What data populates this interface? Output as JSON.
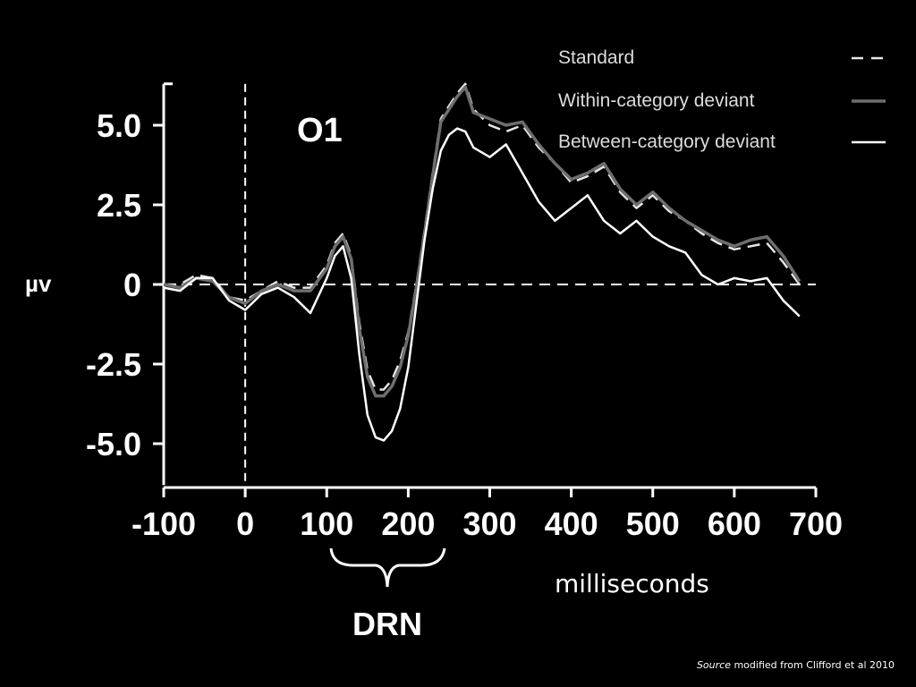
{
  "chart_data": {
    "type": "line",
    "title": "O1",
    "xlabel": "milliseconds",
    "ylabel": "µv",
    "xlim": [
      -100,
      700
    ],
    "ylim": [
      -6.3,
      6.3
    ],
    "x_ticks": [
      -100,
      0,
      100,
      200,
      300,
      400,
      500,
      600,
      700
    ],
    "x_tick_labels": [
      "-100",
      "0",
      "100",
      "200",
      "300",
      "400",
      "500",
      "600",
      "700"
    ],
    "y_ticks": [
      5.0,
      2.5,
      0,
      -2.5,
      -5.0
    ],
    "y_tick_labels": [
      "5.0",
      "2.5",
      "0",
      "-2.5",
      "-5.0"
    ],
    "legend_position": "top-right",
    "annotation": {
      "label": "DRN",
      "x_range": [
        110,
        250
      ]
    },
    "series": [
      {
        "name": "Standard",
        "style": "dashed",
        "color": "#e6e6e6",
        "x": [
          -100,
          -80,
          -60,
          -40,
          -20,
          0,
          20,
          40,
          60,
          80,
          100,
          110,
          120,
          130,
          140,
          150,
          160,
          170,
          180,
          190,
          200,
          210,
          220,
          230,
          240,
          250,
          260,
          270,
          280,
          300,
          320,
          340,
          360,
          380,
          400,
          420,
          440,
          460,
          480,
          500,
          520,
          540,
          560,
          580,
          600,
          620,
          640,
          660,
          680
        ],
        "y": [
          0.0,
          0.0,
          0.3,
          0.2,
          -0.4,
          -0.5,
          -0.2,
          0.1,
          -0.1,
          -0.1,
          0.6,
          1.3,
          1.6,
          0.9,
          -1.2,
          -2.7,
          -3.3,
          -3.3,
          -3.0,
          -2.4,
          -1.5,
          0.0,
          1.7,
          3.5,
          5.2,
          5.6,
          6.0,
          6.3,
          5.5,
          5.0,
          4.8,
          5.0,
          4.3,
          3.8,
          3.2,
          3.4,
          3.7,
          2.9,
          2.4,
          2.8,
          2.3,
          2.0,
          1.6,
          1.3,
          1.1,
          1.2,
          1.3,
          0.7,
          0.0
        ]
      },
      {
        "name": "Within-category deviant",
        "style": "solid",
        "color": "#6e6e6e",
        "x": [
          -100,
          -80,
          -60,
          -40,
          -20,
          0,
          20,
          40,
          60,
          80,
          100,
          110,
          120,
          130,
          140,
          150,
          160,
          170,
          180,
          190,
          200,
          210,
          220,
          230,
          240,
          250,
          260,
          270,
          280,
          300,
          320,
          340,
          360,
          380,
          400,
          420,
          440,
          460,
          480,
          500,
          520,
          540,
          560,
          580,
          600,
          620,
          640,
          660,
          680
        ],
        "y": [
          0.0,
          -0.1,
          0.2,
          0.1,
          -0.4,
          -0.6,
          -0.2,
          0.0,
          -0.2,
          -0.2,
          0.5,
          1.2,
          1.5,
          0.8,
          -1.4,
          -2.9,
          -3.5,
          -3.5,
          -3.2,
          -2.6,
          -1.6,
          -0.1,
          1.6,
          3.4,
          5.1,
          5.5,
          5.9,
          6.2,
          5.4,
          5.2,
          5.0,
          5.1,
          4.4,
          3.8,
          3.3,
          3.5,
          3.8,
          3.0,
          2.5,
          2.9,
          2.4,
          2.0,
          1.7,
          1.4,
          1.2,
          1.4,
          1.5,
          0.9,
          0.1
        ]
      },
      {
        "name": "Between-category deviant",
        "style": "solid",
        "color": "#ffffff",
        "x": [
          -100,
          -80,
          -60,
          -40,
          -20,
          0,
          20,
          40,
          60,
          80,
          100,
          110,
          120,
          130,
          140,
          150,
          160,
          170,
          180,
          190,
          200,
          210,
          220,
          230,
          240,
          250,
          260,
          270,
          280,
          300,
          320,
          340,
          360,
          380,
          400,
          420,
          440,
          460,
          480,
          500,
          520,
          540,
          560,
          580,
          600,
          620,
          640,
          660,
          680
        ],
        "y": [
          -0.1,
          -0.2,
          0.2,
          0.2,
          -0.5,
          -0.8,
          -0.3,
          -0.1,
          -0.4,
          -0.9,
          0.2,
          0.9,
          1.2,
          0.2,
          -2.2,
          -4.1,
          -4.8,
          -4.9,
          -4.6,
          -3.9,
          -2.6,
          -0.6,
          1.4,
          3.0,
          4.2,
          4.7,
          4.9,
          4.8,
          4.3,
          4.0,
          4.4,
          3.5,
          2.6,
          2.0,
          2.4,
          2.8,
          2.0,
          1.6,
          2.0,
          1.5,
          1.2,
          1.0,
          0.3,
          0.0,
          0.2,
          0.1,
          0.2,
          -0.5,
          -1.0
        ]
      }
    ]
  },
  "source": {
    "italic": "Source",
    "text": " modified from Clifford et al 2010"
  }
}
